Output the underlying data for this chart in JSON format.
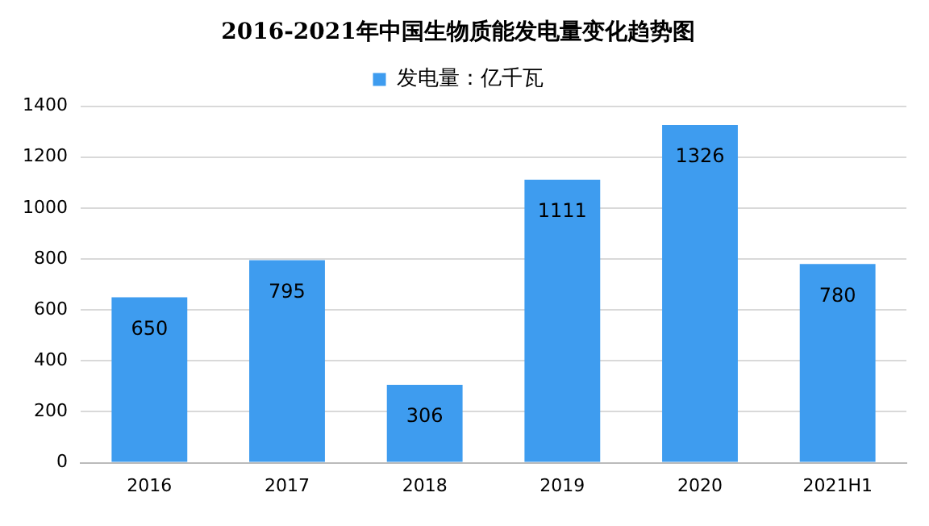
{
  "chart_data": {
    "type": "bar",
    "title": "2016-2021年中国生物质能发电量变化趋势图",
    "categories": [
      "2016",
      "2017",
      "2018",
      "2019",
      "2020",
      "2021H1"
    ],
    "series": [
      {
        "name": "发电量：亿千瓦",
        "color": "#3e9cef",
        "values": [
          650,
          795,
          306,
          1111,
          1326,
          780
        ]
      }
    ],
    "ylim": [
      0,
      1400
    ],
    "yticks": [
      0,
      200,
      400,
      600,
      800,
      1000,
      1200,
      1400
    ],
    "grid": "y",
    "legend": "top",
    "data_labels": true
  }
}
